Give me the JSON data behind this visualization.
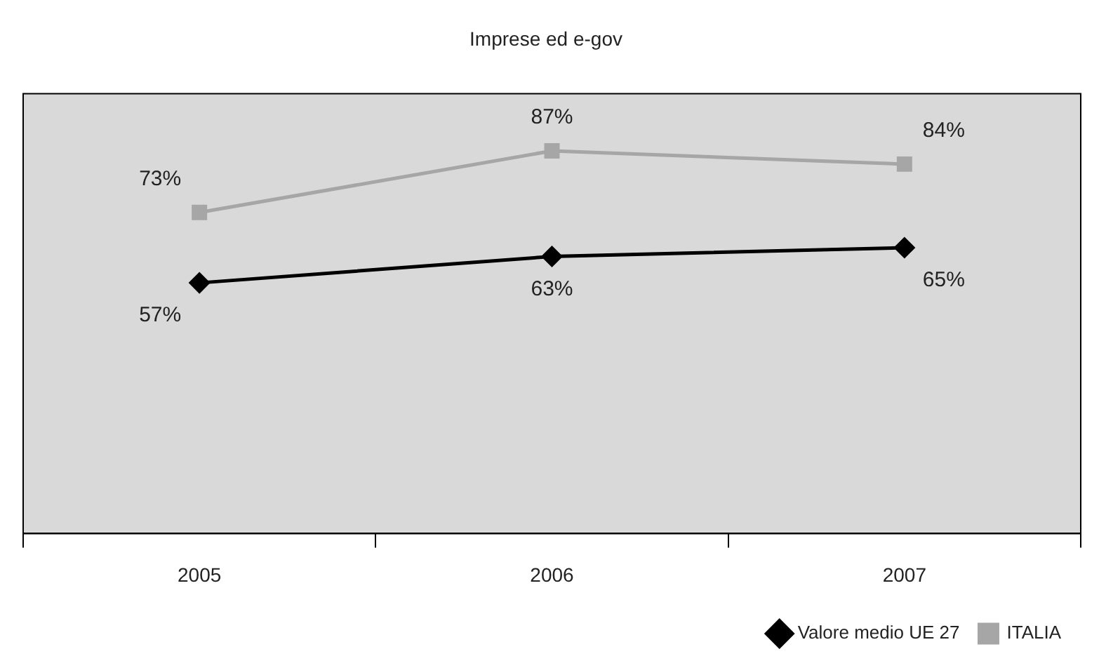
{
  "chart_data": {
    "type": "line",
    "title": "Imprese ed e-gov",
    "categories": [
      "2005",
      "2006",
      "2007"
    ],
    "series": [
      {
        "name": "Valore medio UE 27",
        "color": "#000000",
        "values": [
          57,
          63,
          65
        ],
        "value_labels": [
          "57%",
          "63%",
          "65%"
        ],
        "marker": "diamond"
      },
      {
        "name": "ITALIA",
        "color": "#a6a6a6",
        "values": [
          73,
          87,
          84
        ],
        "value_labels": [
          "73%",
          "87%",
          "84%"
        ],
        "marker": "square"
      }
    ],
    "legend": "bottom right",
    "grid": false,
    "line_style": "solid"
  }
}
